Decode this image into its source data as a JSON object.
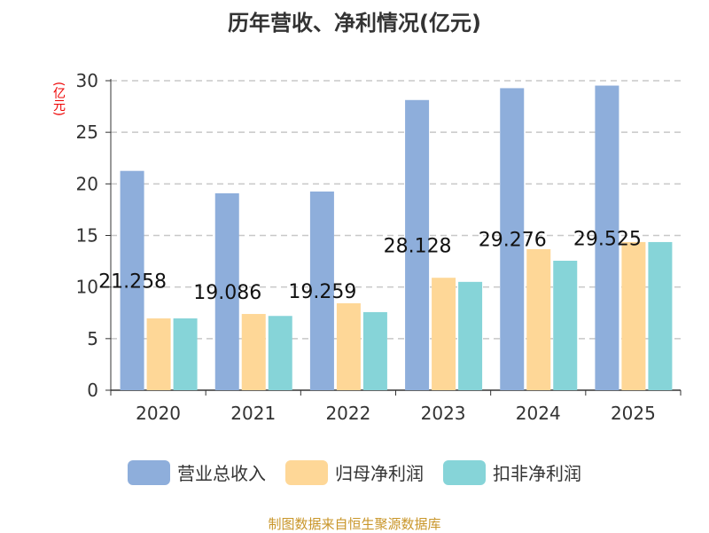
{
  "chart_data": {
    "type": "bar",
    "title": "历年营收、净利情况(亿元)",
    "ylabel": "(亿元)",
    "categories": [
      "2020",
      "2021",
      "2022",
      "2023",
      "2024",
      "2025"
    ],
    "ylim": [
      0,
      30
    ],
    "yticks": [
      0,
      5,
      10,
      15,
      20,
      25,
      30
    ],
    "grid": true,
    "legend_position": "bottom",
    "series": [
      {
        "name": "营业总收入",
        "color": "#8eaedb",
        "values": [
          21.258,
          19.086,
          19.259,
          28.128,
          29.276,
          29.525
        ],
        "show_labels": true
      },
      {
        "name": "归母净利润",
        "color": "#fed797",
        "values": [
          6.96,
          7.39,
          8.43,
          10.9,
          13.67,
          14.36
        ]
      },
      {
        "name": "扣非净利润",
        "color": "#86d4d8",
        "values": [
          6.96,
          7.2,
          7.57,
          10.5,
          12.55,
          14.36
        ]
      }
    ]
  },
  "footer": "制图数据来自恒生聚源数据库"
}
